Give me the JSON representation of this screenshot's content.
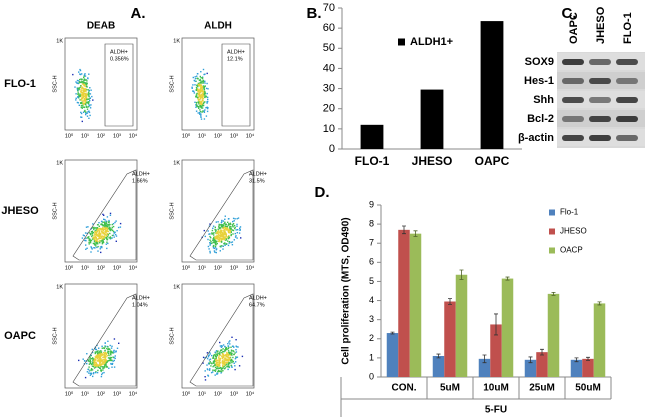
{
  "panel_a": {
    "label": "A.",
    "columns": [
      "DEAB",
      "ALDH"
    ],
    "rows": [
      "FLO-1",
      "JHESO",
      "OAPC"
    ],
    "gates": [
      [
        "ALDH+",
        "0.356%"
      ],
      [
        "ALDH+",
        "12.1%"
      ],
      [
        "ALDH+",
        "1.66%"
      ],
      [
        "ALDH+",
        "31.5%"
      ],
      [
        "ALDH+",
        "1.04%"
      ],
      [
        "ALDH+",
        "64.7%"
      ]
    ],
    "ylabel": "SSC-H",
    "ytick": "1K",
    "xticks": [
      "10⁰",
      "10¹",
      "10²",
      "10³",
      "10⁴"
    ]
  },
  "panel_c": {
    "label": "C.",
    "lanes": [
      "OAPC",
      "JHESO",
      "FLO-1"
    ],
    "proteins": [
      "SOX9",
      "Hes-1",
      "Shh",
      "Bcl-2",
      "β-actin"
    ]
  },
  "chart_data": [
    {
      "type": "bar",
      "panel_label": "B.",
      "categories": [
        "FLO-1",
        "JHESO",
        "OAPC"
      ],
      "series": [
        {
          "name": "ALDH1+",
          "color": "#000000",
          "values": [
            12,
            29.5,
            63.5
          ]
        }
      ],
      "ylim": [
        0,
        70
      ],
      "yticks": [
        0,
        10,
        20,
        30,
        40,
        50,
        60,
        70
      ],
      "grid": false
    },
    {
      "type": "bar",
      "panel_label": "D.",
      "ylabel": "Cell proliferation (MTS, OD490)",
      "xlabel": "5-FU",
      "categories": [
        "CON.",
        "5uM",
        "10uM",
        "25uM",
        "50uM"
      ],
      "series": [
        {
          "name": "Flo-1",
          "color": "#4f81bd",
          "values": [
            2.3,
            1.1,
            0.95,
            0.9,
            0.9
          ],
          "errors": [
            0.05,
            0.1,
            0.2,
            0.15,
            0.1
          ]
        },
        {
          "name": "JHESO",
          "color": "#c0504d",
          "values": [
            7.7,
            3.95,
            2.75,
            1.3,
            0.95
          ],
          "errors": [
            0.2,
            0.15,
            0.55,
            0.15,
            0.08
          ]
        },
        {
          "name": "OACP",
          "color": "#9bbb59",
          "values": [
            7.5,
            5.35,
            5.15,
            4.35,
            3.85
          ],
          "errors": [
            0.15,
            0.25,
            0.08,
            0.08,
            0.08
          ]
        }
      ],
      "ylim": [
        0,
        9
      ],
      "yticks": [
        0,
        1,
        2,
        3,
        4,
        5,
        6,
        7,
        8,
        9
      ],
      "grid": false
    }
  ]
}
